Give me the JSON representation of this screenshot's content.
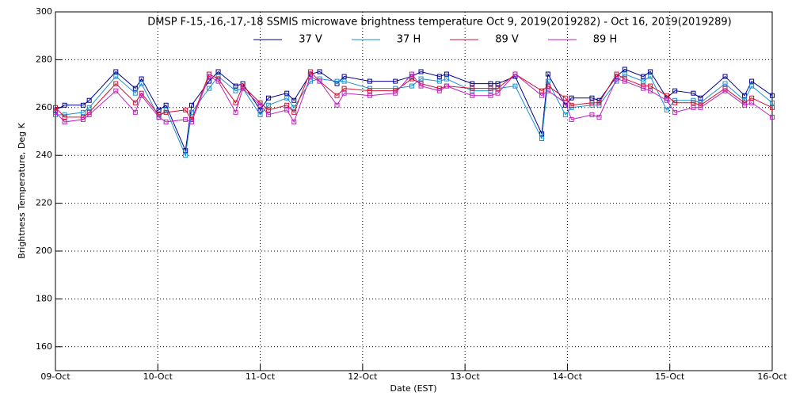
{
  "chart_data": {
    "type": "line",
    "title": "DMSP F-15,-16,-17,-18 SSMIS microwave brightness temperature Oct  9, 2019(2019282) - Oct 16, 2019(2019289)",
    "xlabel": "Date (EST)",
    "ylabel": "Brightness Temperature, Deg K",
    "x": [
      0,
      0.09,
      0.27,
      0.33,
      0.59,
      0.78,
      0.84,
      1.01,
      1.08,
      1.27,
      1.33,
      1.5,
      1.59,
      1.76,
      1.83,
      2.0,
      2.08,
      2.26,
      2.33,
      2.49,
      2.58,
      2.75,
      2.82,
      3.07,
      3.32,
      3.48,
      3.57,
      3.75,
      3.82,
      4.07,
      4.25,
      4.32,
      4.49,
      4.75,
      4.81,
      4.98,
      5.04,
      5.24,
      5.31,
      5.48,
      5.56,
      5.74,
      5.81,
      5.97,
      6.05,
      6.23,
      6.3,
      6.54,
      6.73,
      6.8,
      7.0
    ],
    "series": [
      {
        "name": "37 V",
        "color": "#000090",
        "values": [
          259,
          261,
          261,
          263,
          275,
          268,
          272,
          259,
          261,
          242,
          261,
          271,
          275,
          269,
          270,
          259,
          264,
          266,
          263,
          274,
          275,
          270,
          273,
          271,
          271,
          273,
          275,
          273,
          274,
          270,
          270,
          270,
          273,
          249,
          274,
          261,
          264,
          264,
          263,
          273,
          276,
          273,
          275,
          264,
          267,
          266,
          264,
          273,
          265,
          271,
          265
        ]
      },
      {
        "name": "37 H",
        "color": "#1890d0",
        "values": [
          257,
          257,
          258,
          260,
          273,
          266,
          270,
          256,
          259,
          240,
          258,
          268,
          273,
          267,
          268,
          257,
          261,
          264,
          260,
          271,
          272,
          271,
          271,
          268,
          268,
          269,
          272,
          271,
          272,
          267,
          267,
          268,
          269,
          247,
          271,
          257,
          260,
          261,
          261,
          271,
          274,
          271,
          273,
          259,
          263,
          263,
          262,
          270,
          263,
          269,
          262
        ]
      },
      {
        "name": "89 V",
        "color": "#d01030",
        "values": [
          260,
          256,
          256,
          258,
          270,
          262,
          266,
          257,
          258,
          259,
          255,
          274,
          272,
          262,
          269,
          262,
          259,
          261,
          258,
          275,
          271,
          265,
          268,
          267,
          267,
          272,
          270,
          268,
          269,
          268,
          268,
          268,
          274,
          267,
          269,
          264,
          261,
          262,
          262,
          274,
          272,
          269,
          269,
          265,
          262,
          262,
          261,
          268,
          262,
          264,
          260
        ]
      },
      {
        "name": "89 H",
        "color": "#c020c0",
        "values": [
          258,
          254,
          255,
          257,
          267,
          258,
          265,
          256,
          254,
          255,
          254,
          273,
          271,
          258,
          268,
          261,
          257,
          259,
          254,
          273,
          271,
          261,
          266,
          265,
          266,
          274,
          269,
          267,
          269,
          265,
          265,
          266,
          274,
          265,
          267,
          262,
          255,
          257,
          256,
          272,
          271,
          268,
          267,
          263,
          258,
          260,
          260,
          267,
          261,
          262,
          256
        ]
      }
    ],
    "xlim": [
      0,
      7
    ],
    "xticks": [
      {
        "value": 0,
        "label": "09-Oct"
      },
      {
        "value": 1,
        "label": "10-Oct"
      },
      {
        "value": 2,
        "label": "11-Oct"
      },
      {
        "value": 3,
        "label": "12-Oct"
      },
      {
        "value": 4,
        "label": "13-Oct"
      },
      {
        "value": 5,
        "label": "14-Oct"
      },
      {
        "value": 6,
        "label": "15-Oct"
      },
      {
        "value": 7,
        "label": "16-Oct"
      }
    ],
    "ylim": [
      150,
      300
    ],
    "yticks": [
      160,
      180,
      200,
      220,
      240,
      260,
      280,
      300
    ],
    "grid": true
  }
}
